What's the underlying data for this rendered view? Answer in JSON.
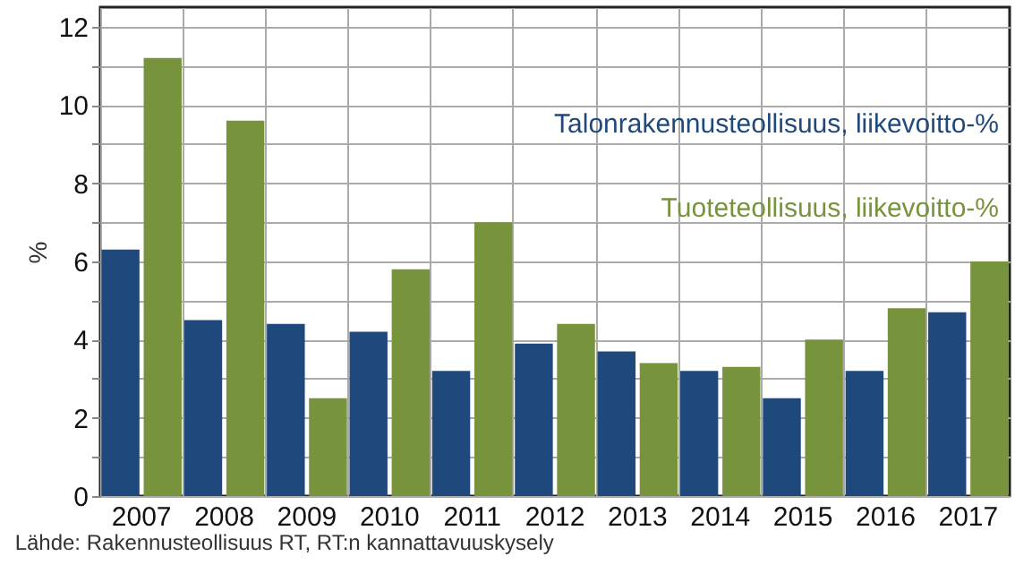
{
  "chart_data": {
    "type": "bar",
    "ylabel": "%",
    "categories": [
      "2007",
      "2008",
      "2009",
      "2010",
      "2011",
      "2012",
      "2013",
      "2014",
      "2015",
      "2016",
      "2017"
    ],
    "series": [
      {
        "name": "Talonrakennusteollisuus, liikevoitto-%",
        "color": "#1f497d",
        "values": [
          6.3,
          4.5,
          4.4,
          4.2,
          3.2,
          3.9,
          3.7,
          3.2,
          2.5,
          3.2,
          4.7
        ]
      },
      {
        "name": "Tuoteteollisuus, liikevoitto-%",
        "color": "#77933c",
        "values": [
          11.2,
          9.6,
          2.5,
          5.8,
          7.0,
          4.4,
          3.4,
          3.3,
          4.0,
          4.8,
          6.0
        ]
      }
    ],
    "ylim": [
      0,
      12.5
    ],
    "yticks": [
      0,
      {
        "value": 1,
        "label": null
      },
      2,
      {
        "value": 3,
        "label": null
      },
      4,
      {
        "value": 5,
        "label": null
      },
      6,
      {
        "value": 7,
        "label": null
      },
      8,
      {
        "value": 9,
        "label": null
      },
      10,
      {
        "value": 11,
        "label": null
      },
      12
    ],
    "grid": true,
    "legend": "top right",
    "annotations": [
      "Lähde: Rakennusteollisuus RT, RT:n kannattavuuskysely"
    ]
  }
}
